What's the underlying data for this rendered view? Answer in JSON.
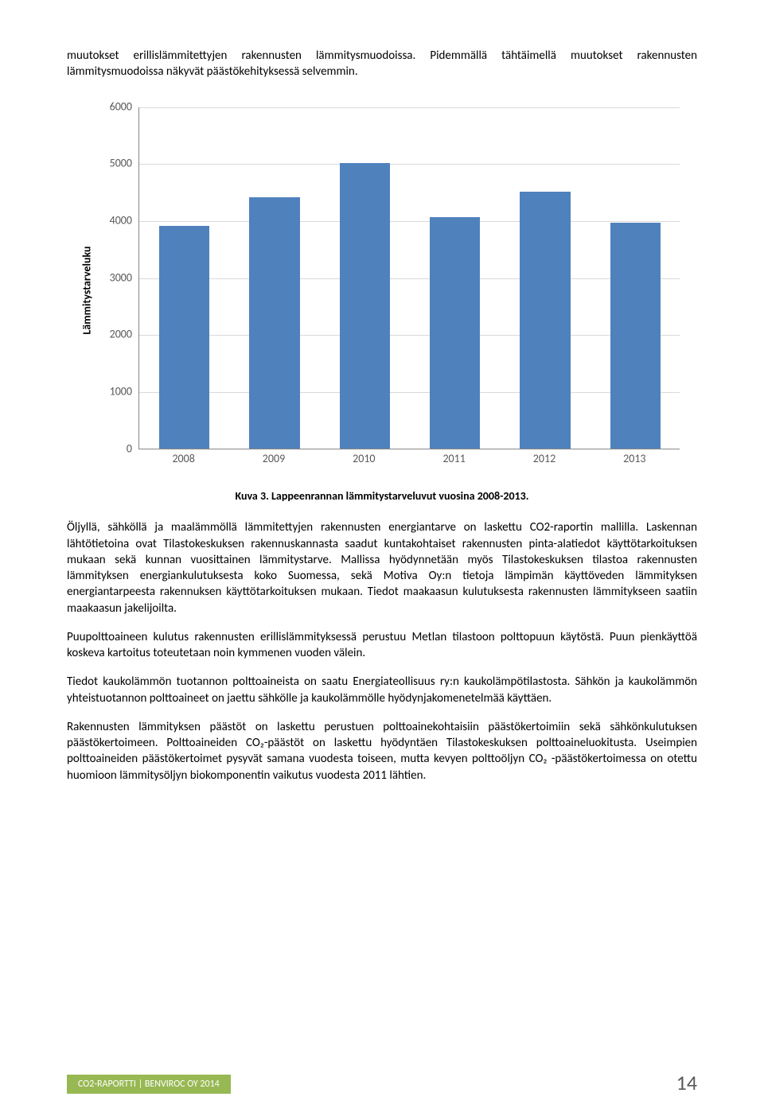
{
  "para1": "muutokset erillislämmitettyjen rakennusten lämmitysmuodoissa. Pidemmällä tähtäimellä muutokset rakennusten lämmitysmuodoissa näkyvät päästökehityksessä selvemmin.",
  "chart": {
    "type": "bar",
    "ylabel": "Lämmitystarveluku",
    "categories": [
      "2008",
      "2009",
      "2010",
      "2011",
      "2012",
      "2013"
    ],
    "values": [
      3900,
      4400,
      5000,
      4050,
      4500,
      3950
    ],
    "ylim": [
      0,
      6000
    ],
    "ytick_step": 1000,
    "bar_color": "#4f81bd",
    "grid_color": "#d9d9d9",
    "axis_color": "#888888",
    "tick_font_color": "#595959",
    "bar_width_ratio": 0.56,
    "label_fontsize": 14
  },
  "chart_caption": "Kuva 3. Lappeenrannan lämmitystarveluvut vuosina 2008-2013.",
  "para2": "Öljyllä, sähköllä ja maalämmöllä lämmitettyjen rakennusten energiantarve on laskettu CO2-raportin mallilla. Laskennan lähtötietoina ovat Tilastokeskuksen rakennuskannasta saadut kuntakohtaiset rakennusten pinta-alatiedot käyttötarkoituksen mukaan sekä kunnan vuosittainen lämmitystarve. Mallissa hyödynnetään myös Tilastokeskuksen tilastoa rakennusten lämmityksen energiankulutuksesta koko Suomessa, sekä Motiva Oy:n tietoja lämpimän käyttöveden lämmityksen energiantarpeesta rakennuksen käyttötarkoituksen mukaan. Tiedot maakaasun kulutuksesta rakennusten lämmitykseen saatiin maakaasun jakelijoilta.",
  "para3": "Puupolttoaineen kulutus rakennusten erillislämmityksessä perustuu Metlan tilastoon polttopuun käytöstä. Puun pienkäyttöä koskeva kartoitus toteutetaan noin kymmenen vuoden välein.",
  "para4": "Tiedot kaukolämmön tuotannon polttoaineista on saatu Energiateollisuus ry:n kaukolämpötilastosta. Sähkön ja kaukolämmön yhteistuotannon polttoaineet on jaettu sähkölle ja kaukolämmölle hyödynjakomenetelmää käyttäen.",
  "para5": "Rakennusten lämmityksen päästöt on laskettu perustuen polttoainekohtaisiin päästökertoimiin sekä sähkönkulutuksen päästökertoimeen. Polttoaineiden CO₂-päästöt on laskettu hyödyntäen Tilastokeskuksen polttoaineluokitusta. Useimpien polttoaineiden päästökertoimet pysyvät samana vuodesta toiseen, mutta kevyen polttoöljyn CO₂ -päästökertoimessa on otettu huomioon lämmitysöljyn biokomponentin vaikutus vuodesta 2011 lähtien.",
  "footer_text": "CO2-RAPORTTI | BENVIROC OY 2014",
  "footer_bg": "#97b853",
  "page_number": "14"
}
